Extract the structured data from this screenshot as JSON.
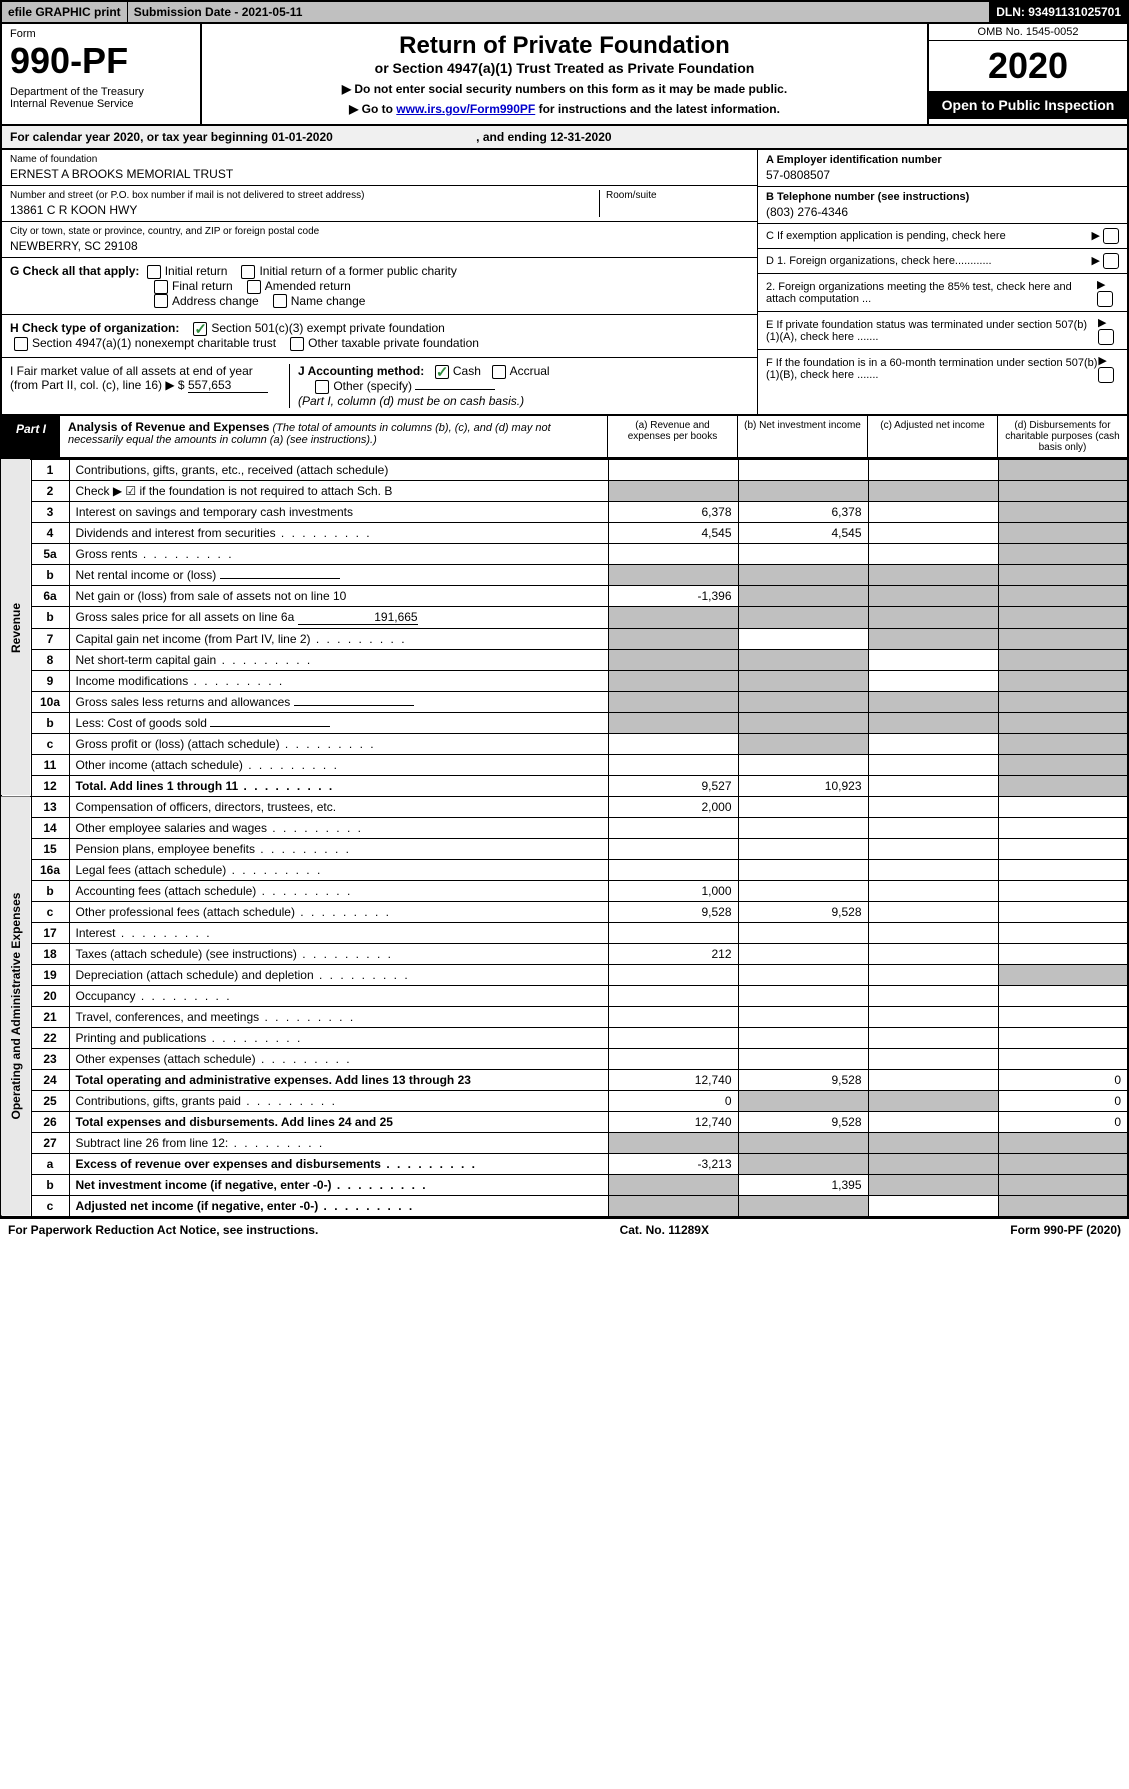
{
  "topbar": {
    "efile": "efile GRAPHIC print",
    "subdate": "Submission Date - 2021-05-11",
    "dln": "DLN: 93491131025701"
  },
  "header": {
    "form": "Form",
    "num": "990-PF",
    "dept": "Department of the Treasury\nInternal Revenue Service",
    "title": "Return of Private Foundation",
    "sub": "or Section 4947(a)(1) Trust Treated as Private Foundation",
    "note1": "▶ Do not enter social security numbers on this form as it may be made public.",
    "note2": "▶ Go to www.irs.gov/Form990PF for instructions and the latest information.",
    "link": "www.irs.gov/Form990PF",
    "omb": "OMB No. 1545-0052",
    "year": "2020",
    "open": "Open to Public Inspection"
  },
  "calyear": {
    "text": "For calendar year 2020, or tax year beginning 01-01-2020",
    "end": ", and ending 12-31-2020"
  },
  "org": {
    "name_label": "Name of foundation",
    "name": "ERNEST A BROOKS MEMORIAL TRUST",
    "addr_label": "Number and street (or P.O. box number if mail is not delivered to street address)",
    "addr": "13861 C R KOON HWY",
    "room_label": "Room/suite",
    "city_label": "City or town, state or province, country, and ZIP or foreign postal code",
    "city": "NEWBERRY, SC  29108"
  },
  "side": {
    "ein_label": "A Employer identification number",
    "ein": "57-0808507",
    "tel_label": "B Telephone number (see instructions)",
    "tel": "(803) 276-4346",
    "c": "C If exemption application is pending, check here",
    "d1": "D 1. Foreign organizations, check here............",
    "d2": "2. Foreign organizations meeting the 85% test, check here and attach computation ...",
    "e": "E If private foundation status was terminated under section 507(b)(1)(A), check here .......",
    "f": "F If the foundation is in a 60-month termination under section 507(b)(1)(B), check here ......."
  },
  "checks": {
    "g_label": "G Check all that apply:",
    "g_items": [
      "Initial return",
      "Initial return of a former public charity",
      "Final return",
      "Amended return",
      "Address change",
      "Name change"
    ],
    "h_label": "H Check type of organization:",
    "h1": "Section 501(c)(3) exempt private foundation",
    "h2": "Section 4947(a)(1) nonexempt charitable trust",
    "h3": "Other taxable private foundation",
    "i_label": "I Fair market value of all assets at end of year (from Part II, col. (c), line 16) ▶ $",
    "i_val": "557,653",
    "j_label": "J Accounting method:",
    "j1": "Cash",
    "j2": "Accrual",
    "j3": "Other (specify)",
    "j_note": "(Part I, column (d) must be on cash basis.)"
  },
  "part1": {
    "tab": "Part I",
    "title": "Analysis of Revenue and Expenses",
    "note": "(The total of amounts in columns (b), (c), and (d) may not necessarily equal the amounts in column (a) (see instructions).)",
    "cols": {
      "a": "(a)   Revenue and expenses per books",
      "b": "(b)  Net investment income",
      "c": "(c)  Adjusted net income",
      "d": "(d)  Disbursements for charitable purposes (cash basis only)"
    }
  },
  "vlabels": {
    "rev": "Revenue",
    "exp": "Operating and Administrative Expenses"
  },
  "rows": [
    {
      "n": "1",
      "d": "Contributions, gifts, grants, etc., received (attach schedule)",
      "a": "",
      "b": "",
      "c": "",
      "dd": "",
      "shade_d": true
    },
    {
      "n": "2",
      "d": "Check ▶ ☑ if the foundation is not required to attach Sch. B",
      "a": "",
      "b": "",
      "c": "",
      "dd": "",
      "shade_all": true,
      "noamt": true
    },
    {
      "n": "3",
      "d": "Interest on savings and temporary cash investments",
      "a": "6,378",
      "b": "6,378",
      "c": "",
      "dd": "",
      "shade_d": true
    },
    {
      "n": "4",
      "d": "Dividends and interest from securities",
      "a": "4,545",
      "b": "4,545",
      "c": "",
      "dd": "",
      "shade_d": true
    },
    {
      "n": "5a",
      "d": "Gross rents",
      "a": "",
      "b": "",
      "c": "",
      "dd": "",
      "shade_d": true
    },
    {
      "n": "b",
      "d": "Net rental income or (loss)",
      "a": "",
      "b": "",
      "c": "",
      "dd": "",
      "shade_all": true,
      "noamt": true,
      "inline": true
    },
    {
      "n": "6a",
      "d": "Net gain or (loss) from sale of assets not on line 10",
      "a": "-1,396",
      "b": "",
      "c": "",
      "dd": "",
      "shade_bcd": true
    },
    {
      "n": "b",
      "d": "Gross sales price for all assets on line 6a",
      "a": "",
      "b": "",
      "c": "",
      "dd": "",
      "shade_all": true,
      "noamt": true,
      "inline": true,
      "inline_val": "191,665"
    },
    {
      "n": "7",
      "d": "Capital gain net income (from Part IV, line 2)",
      "a": "",
      "b": "",
      "c": "",
      "dd": "",
      "shade_a": true,
      "shade_cd": true
    },
    {
      "n": "8",
      "d": "Net short-term capital gain",
      "a": "",
      "b": "",
      "c": "",
      "dd": "",
      "shade_ab": true,
      "shade_d": true
    },
    {
      "n": "9",
      "d": "Income modifications",
      "a": "",
      "b": "",
      "c": "",
      "dd": "",
      "shade_ab": true,
      "shade_d": true
    },
    {
      "n": "10a",
      "d": "Gross sales less returns and allowances",
      "a": "",
      "b": "",
      "c": "",
      "dd": "",
      "shade_all": true,
      "noamt": true,
      "inline": true
    },
    {
      "n": "b",
      "d": "Less: Cost of goods sold",
      "a": "",
      "b": "",
      "c": "",
      "dd": "",
      "shade_all": true,
      "noamt": true,
      "inline": true
    },
    {
      "n": "c",
      "d": "Gross profit or (loss) (attach schedule)",
      "a": "",
      "b": "",
      "c": "",
      "dd": "",
      "shade_b": true,
      "shade_d": true
    },
    {
      "n": "11",
      "d": "Other income (attach schedule)",
      "a": "",
      "b": "",
      "c": "",
      "dd": "",
      "shade_d": true
    },
    {
      "n": "12",
      "d": "Total. Add lines 1 through 11",
      "a": "9,527",
      "b": "10,923",
      "c": "",
      "dd": "",
      "shade_d": true,
      "bold": true
    }
  ],
  "exp_rows": [
    {
      "n": "13",
      "d": "Compensation of officers, directors, trustees, etc.",
      "a": "2,000",
      "b": "",
      "c": "",
      "dd": ""
    },
    {
      "n": "14",
      "d": "Other employee salaries and wages",
      "a": "",
      "b": "",
      "c": "",
      "dd": ""
    },
    {
      "n": "15",
      "d": "Pension plans, employee benefits",
      "a": "",
      "b": "",
      "c": "",
      "dd": ""
    },
    {
      "n": "16a",
      "d": "Legal fees (attach schedule)",
      "a": "",
      "b": "",
      "c": "",
      "dd": ""
    },
    {
      "n": "b",
      "d": "Accounting fees (attach schedule)",
      "a": "1,000",
      "b": "",
      "c": "",
      "dd": ""
    },
    {
      "n": "c",
      "d": "Other professional fees (attach schedule)",
      "a": "9,528",
      "b": "9,528",
      "c": "",
      "dd": ""
    },
    {
      "n": "17",
      "d": "Interest",
      "a": "",
      "b": "",
      "c": "",
      "dd": ""
    },
    {
      "n": "18",
      "d": "Taxes (attach schedule) (see instructions)",
      "a": "212",
      "b": "",
      "c": "",
      "dd": ""
    },
    {
      "n": "19",
      "d": "Depreciation (attach schedule) and depletion",
      "a": "",
      "b": "",
      "c": "",
      "dd": "",
      "shade_d": true
    },
    {
      "n": "20",
      "d": "Occupancy",
      "a": "",
      "b": "",
      "c": "",
      "dd": ""
    },
    {
      "n": "21",
      "d": "Travel, conferences, and meetings",
      "a": "",
      "b": "",
      "c": "",
      "dd": ""
    },
    {
      "n": "22",
      "d": "Printing and publications",
      "a": "",
      "b": "",
      "c": "",
      "dd": ""
    },
    {
      "n": "23",
      "d": "Other expenses (attach schedule)",
      "a": "",
      "b": "",
      "c": "",
      "dd": ""
    },
    {
      "n": "24",
      "d": "Total operating and administrative expenses. Add lines 13 through 23",
      "a": "12,740",
      "b": "9,528",
      "c": "",
      "dd": "0",
      "bold": true
    },
    {
      "n": "25",
      "d": "Contributions, gifts, grants paid",
      "a": "0",
      "b": "",
      "c": "",
      "dd": "0",
      "shade_bc": true
    },
    {
      "n": "26",
      "d": "Total expenses and disbursements. Add lines 24 and 25",
      "a": "12,740",
      "b": "9,528",
      "c": "",
      "dd": "0",
      "bold": true
    },
    {
      "n": "27",
      "d": "Subtract line 26 from line 12:",
      "a": "",
      "b": "",
      "c": "",
      "dd": "",
      "shade_all": true
    },
    {
      "n": "a",
      "d": "Excess of revenue over expenses and disbursements",
      "a": "-3,213",
      "b": "",
      "c": "",
      "dd": "",
      "shade_bcd": true,
      "bold": true
    },
    {
      "n": "b",
      "d": "Net investment income (if negative, enter -0-)",
      "a": "",
      "b": "1,395",
      "c": "",
      "dd": "",
      "shade_a": true,
      "shade_cd": true,
      "bold": true
    },
    {
      "n": "c",
      "d": "Adjusted net income (if negative, enter -0-)",
      "a": "",
      "b": "",
      "c": "",
      "dd": "",
      "shade_ab": true,
      "shade_d": true,
      "bold": true
    }
  ],
  "footer": {
    "left": "For Paperwork Reduction Act Notice, see instructions.",
    "center": "Cat. No. 11289X",
    "right": "Form 990-PF (2020)"
  }
}
